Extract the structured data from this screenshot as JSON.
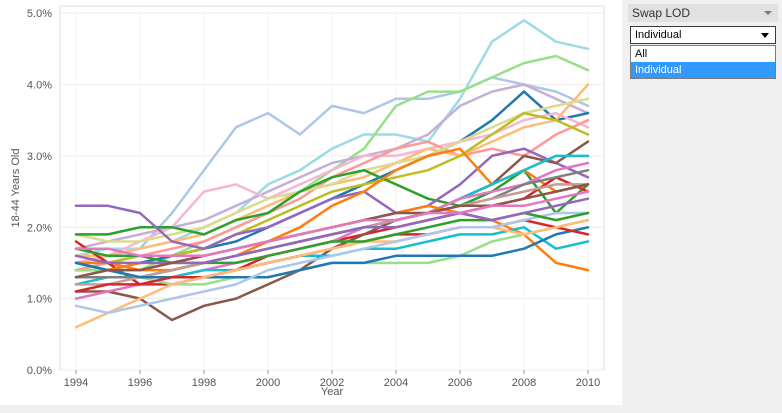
{
  "panel": {
    "title": "Swap LOD",
    "select_value": "Individual",
    "options": [
      "All",
      "Individual"
    ],
    "selected_option": "Individual",
    "selected_color": "#3399ff"
  },
  "chart_data": {
    "type": "line",
    "title": "",
    "xlabel": "Year",
    "ylabel": "18-44 Years Old",
    "x": [
      1994,
      1995,
      1996,
      1997,
      1998,
      1999,
      2000,
      2001,
      2002,
      2003,
      2004,
      2005,
      2006,
      2007,
      2008,
      2009,
      2010
    ],
    "xlim": [
      1993.5,
      2010.5
    ],
    "ylim": [
      0,
      5.1
    ],
    "x_ticks": [
      "1994",
      "1996",
      "1998",
      "2000",
      "2002",
      "2004",
      "2006",
      "2008",
      "2010"
    ],
    "y_ticks": [
      "0.0%",
      "1.0%",
      "2.0%",
      "3.0%",
      "4.0%",
      "5.0%"
    ],
    "y_tick_values": [
      0,
      1,
      2,
      3,
      4,
      5
    ],
    "grid": true,
    "series": [
      {
        "color": "#aec7e8",
        "values": [
          1.5,
          1.6,
          1.7,
          2.2,
          2.8,
          3.4,
          3.6,
          3.3,
          3.7,
          3.6,
          3.8,
          3.8,
          3.9,
          4.1,
          4.0,
          3.9,
          3.7
        ]
      },
      {
        "color": "#9edae5",
        "values": [
          1.6,
          1.7,
          1.7,
          1.8,
          2.0,
          2.2,
          2.6,
          2.8,
          3.1,
          3.3,
          3.3,
          3.2,
          3.8,
          4.6,
          4.9,
          4.6,
          4.5
        ]
      },
      {
        "color": "#98df8a",
        "values": [
          1.3,
          1.4,
          1.4,
          1.6,
          1.8,
          2.0,
          2.2,
          2.5,
          2.8,
          3.1,
          3.7,
          3.9,
          3.9,
          4.1,
          4.3,
          4.4,
          4.2
        ]
      },
      {
        "color": "#c5b0d5",
        "values": [
          1.7,
          1.8,
          1.9,
          2.0,
          2.1,
          2.3,
          2.5,
          2.7,
          2.9,
          3.0,
          3.1,
          3.3,
          3.7,
          3.9,
          4.0,
          3.8,
          3.6
        ]
      },
      {
        "color": "#1f77b4",
        "values": [
          1.4,
          1.4,
          1.5,
          1.6,
          1.7,
          1.8,
          2.0,
          2.2,
          2.4,
          2.6,
          2.8,
          3.0,
          3.2,
          3.5,
          3.9,
          3.5,
          3.6
        ]
      },
      {
        "color": "#f7b6d2",
        "values": [
          1.5,
          1.6,
          1.8,
          2.0,
          2.5,
          2.6,
          2.4,
          2.6,
          2.8,
          3.0,
          3.0,
          3.1,
          3.2,
          3.3,
          3.5,
          3.6,
          3.4
        ]
      },
      {
        "color": "#ff9896",
        "values": [
          1.4,
          1.5,
          1.6,
          1.7,
          1.8,
          2.0,
          2.2,
          2.4,
          2.7,
          2.9,
          3.1,
          3.2,
          3.0,
          3.1,
          3.0,
          3.3,
          3.5
        ]
      },
      {
        "color": "#ffbb78",
        "values": [
          1.6,
          1.6,
          1.7,
          1.8,
          1.9,
          2.1,
          2.3,
          2.5,
          2.6,
          2.7,
          2.9,
          3.1,
          3.0,
          3.2,
          3.4,
          3.5,
          4.0
        ]
      },
      {
        "color": "#dbdb8d",
        "values": [
          1.9,
          1.8,
          1.8,
          1.9,
          2.0,
          2.2,
          2.4,
          2.5,
          2.6,
          2.8,
          2.9,
          3.0,
          3.2,
          3.4,
          3.6,
          3.7,
          3.8
        ]
      },
      {
        "color": "#bcbd22",
        "values": [
          1.5,
          1.5,
          1.6,
          1.6,
          1.7,
          1.9,
          2.1,
          2.3,
          2.5,
          2.6,
          2.7,
          2.8,
          3.0,
          3.3,
          3.6,
          3.5,
          3.3
        ]
      },
      {
        "color": "#2ca02c",
        "values": [
          1.9,
          1.9,
          2.0,
          2.0,
          1.9,
          2.1,
          2.2,
          2.5,
          2.7,
          2.8,
          2.6,
          2.4,
          2.3,
          2.5,
          2.8,
          2.2,
          2.6
        ]
      },
      {
        "color": "#9467bd",
        "values": [
          2.3,
          2.3,
          2.2,
          1.8,
          1.7,
          1.9,
          2.0,
          2.2,
          2.4,
          2.5,
          2.2,
          2.3,
          2.6,
          3.0,
          3.1,
          2.9,
          2.7
        ]
      },
      {
        "color": "#ff7f0e",
        "values": [
          1.5,
          1.5,
          1.4,
          1.4,
          1.5,
          1.6,
          1.8,
          2.0,
          2.3,
          2.5,
          2.8,
          3.0,
          3.1,
          2.6,
          2.8,
          2.5,
          2.6
        ]
      },
      {
        "color": "#d62728",
        "values": [
          1.8,
          1.5,
          1.2,
          1.2,
          1.3,
          1.4,
          1.6,
          1.7,
          1.8,
          1.9,
          2.0,
          2.1,
          2.2,
          2.3,
          2.4,
          2.7,
          2.5
        ]
      },
      {
        "color": "#8c564b",
        "values": [
          1.1,
          1.1,
          1.0,
          0.7,
          0.9,
          1.0,
          1.2,
          1.4,
          1.7,
          1.9,
          2.1,
          2.2,
          2.4,
          2.6,
          3.0,
          2.9,
          3.2
        ]
      },
      {
        "color": "#17becf",
        "values": [
          1.2,
          1.3,
          1.3,
          1.4,
          1.5,
          1.6,
          1.7,
          1.8,
          1.9,
          2.0,
          2.1,
          2.2,
          2.4,
          2.6,
          2.8,
          3.0,
          3.0
        ]
      },
      {
        "color": "#e377c2",
        "values": [
          1.0,
          1.1,
          1.2,
          1.3,
          1.4,
          1.5,
          1.6,
          1.7,
          1.8,
          2.0,
          2.1,
          2.2,
          2.4,
          2.5,
          2.6,
          2.8,
          2.9
        ]
      },
      {
        "color": "#7f7f7f",
        "values": [
          1.3,
          1.3,
          1.3,
          1.4,
          1.5,
          1.6,
          1.7,
          1.8,
          1.9,
          2.0,
          2.1,
          2.2,
          2.3,
          2.4,
          2.6,
          2.7,
          2.8
        ]
      },
      {
        "color": "#c49c94",
        "values": [
          1.2,
          1.2,
          1.3,
          1.4,
          1.5,
          1.6,
          1.7,
          1.8,
          1.9,
          2.0,
          2.1,
          2.2,
          2.3,
          2.4,
          2.5,
          2.6,
          2.6
        ]
      },
      {
        "color": "#ff7f0e",
        "values": [
          1.4,
          1.4,
          1.5,
          1.5,
          1.6,
          1.7,
          1.8,
          1.9,
          2.0,
          2.1,
          2.2,
          2.3,
          2.2,
          2.1,
          1.9,
          1.5,
          1.4
        ]
      },
      {
        "color": "#17becf",
        "values": [
          1.5,
          1.4,
          1.3,
          1.3,
          1.4,
          1.4,
          1.5,
          1.6,
          1.6,
          1.7,
          1.7,
          1.8,
          1.9,
          1.9,
          2.0,
          1.7,
          1.8
        ]
      },
      {
        "color": "#98df8a",
        "values": [
          1.4,
          1.4,
          1.3,
          1.2,
          1.2,
          1.3,
          1.3,
          1.4,
          1.5,
          1.5,
          1.5,
          1.5,
          1.6,
          1.8,
          1.9,
          2.0,
          2.1
        ]
      },
      {
        "color": "#1f77b4",
        "values": [
          1.5,
          1.4,
          1.3,
          1.3,
          1.3,
          1.3,
          1.3,
          1.4,
          1.5,
          1.5,
          1.6,
          1.6,
          1.6,
          1.6,
          1.7,
          1.9,
          2.0
        ]
      },
      {
        "color": "#d62728",
        "values": [
          1.1,
          1.2,
          1.2,
          1.3,
          1.3,
          1.4,
          1.5,
          1.6,
          1.7,
          1.8,
          1.9,
          1.9,
          2.0,
          2.0,
          2.1,
          2.0,
          1.9
        ]
      },
      {
        "color": "#ffbb78",
        "values": [
          0.6,
          0.8,
          1.0,
          1.2,
          1.3,
          1.4,
          1.5,
          1.6,
          1.7,
          1.8,
          1.8,
          1.9,
          2.0,
          2.0,
          1.9,
          2.0,
          2.1
        ]
      },
      {
        "color": "#aec7e8",
        "values": [
          0.9,
          0.8,
          0.9,
          1.0,
          1.1,
          1.2,
          1.4,
          1.5,
          1.6,
          1.7,
          1.8,
          1.9,
          2.0,
          2.0,
          2.1,
          2.2,
          2.2
        ]
      },
      {
        "color": "#2ca02c",
        "values": [
          1.7,
          1.6,
          1.6,
          1.5,
          1.5,
          1.5,
          1.6,
          1.7,
          1.8,
          1.8,
          1.9,
          2.0,
          2.1,
          2.1,
          2.2,
          2.1,
          2.2
        ]
      },
      {
        "color": "#9467bd",
        "values": [
          1.6,
          1.5,
          1.5,
          1.5,
          1.5,
          1.6,
          1.7,
          1.8,
          1.9,
          2.0,
          2.0,
          2.1,
          2.2,
          2.1,
          2.2,
          2.3,
          2.4
        ]
      },
      {
        "color": "#8c564b",
        "values": [
          1.3,
          1.4,
          1.4,
          1.5,
          1.6,
          1.7,
          1.8,
          1.9,
          2.0,
          2.1,
          2.2,
          2.2,
          2.3,
          2.3,
          2.4,
          2.5,
          2.6
        ]
      },
      {
        "color": "#e377c2",
        "values": [
          1.7,
          1.7,
          1.6,
          1.6,
          1.6,
          1.7,
          1.8,
          1.9,
          2.0,
          2.1,
          2.1,
          2.2,
          2.2,
          2.3,
          2.3,
          2.4,
          2.5
        ]
      }
    ]
  }
}
